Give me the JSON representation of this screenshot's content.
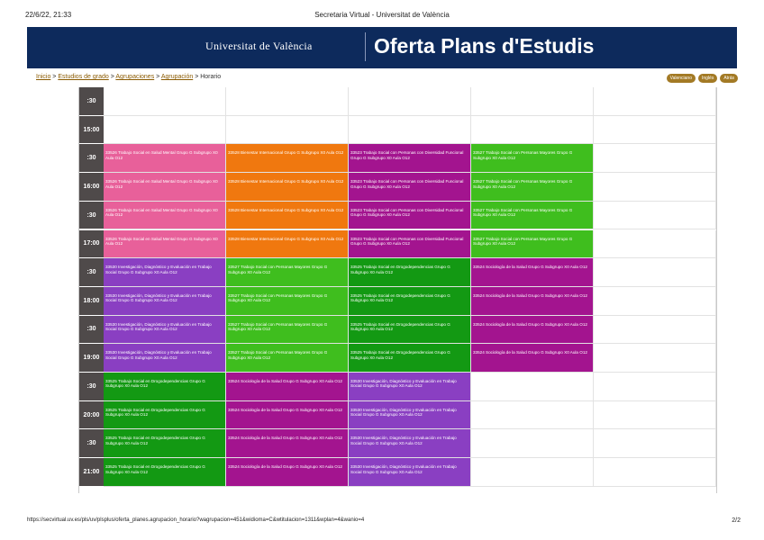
{
  "print_header": {
    "date": "22/6/22, 21:33",
    "title": "Secretaria Virtual - Universitat de València"
  },
  "banner": {
    "university": "Universitat de València",
    "title": "Oferta Plans d'Estudis"
  },
  "breadcrumb": {
    "items": [
      "Inicio",
      "Estudios de grado",
      "Agrupaciones",
      "Agrupación"
    ],
    "separator": ">",
    "current": "Horario"
  },
  "languages": [
    "Valenciano",
    "Inglés",
    "Atrás"
  ],
  "colors": {
    "pink": "#e8609a",
    "orange": "#f0780f",
    "magenta": "#a3148f",
    "green": "#3fbe1e",
    "darkgreen": "#139913",
    "purple": "#8a3fc2",
    "time_bg": "#4f4a4a"
  },
  "schedule": {
    "rows": [
      {
        "time": ":30",
        "cells": [
          null,
          null,
          null,
          null,
          null
        ]
      },
      {
        "time": "15:00",
        "cells": [
          null,
          null,
          null,
          null,
          null
        ]
      },
      {
        "time": ":30",
        "cells": [
          {
            "text": "33526 Trabajo Social en Salud Mental Grupo G Subgrupo X0 Aula O12",
            "color": "pink"
          },
          {
            "text": "33528 Bienestar Internacional Grupo G Subgrupo X0 Aula O12",
            "color": "orange"
          },
          {
            "text": "33523 Trabajo Social con Personas con Diversidad Funcional Grupo G Subgrupo X0 Aula O12",
            "color": "magenta"
          },
          {
            "text": "33527 Trabajo Social con Personas Mayores Grupo G Subgrupo X0 Aula O12",
            "color": "green"
          },
          null
        ]
      },
      {
        "time": "16:00",
        "cells": [
          {
            "text": "33526 Trabajo Social en Salud Mental Grupo G Subgrupo X0 Aula O12",
            "color": "pink"
          },
          {
            "text": "33528 Bienestar Internacional Grupo G Subgrupo X0 Aula O12",
            "color": "orange"
          },
          {
            "text": "33523 Trabajo Social con Personas con Diversidad Funcional Grupo G Subgrupo X0 Aula O12",
            "color": "magenta"
          },
          {
            "text": "33527 Trabajo Social con Personas Mayores Grupo G Subgrupo X0 Aula O12",
            "color": "green"
          },
          null
        ]
      },
      {
        "time": ":30",
        "cells": [
          {
            "text": "33526 Trabajo Social en Salud Mental Grupo G Subgrupo X0 Aula O12",
            "color": "pink"
          },
          {
            "text": "33528 Bienestar Internacional Grupo G Subgrupo X0 Aula O12",
            "color": "orange"
          },
          {
            "text": "33523 Trabajo Social con Personas con Diversidad Funcional Grupo G Subgrupo X0 Aula O12",
            "color": "magenta"
          },
          {
            "text": "33527 Trabajo Social con Personas Mayores Grupo G Subgrupo X0 Aula O12",
            "color": "green"
          },
          null
        ]
      },
      {
        "time": "17:00",
        "cells": [
          {
            "text": "33526 Trabajo Social en Salud Mental Grupo G Subgrupo X0 Aula O12",
            "color": "pink"
          },
          {
            "text": "33528 Bienestar Internacional Grupo G Subgrupo X0 Aula O12",
            "color": "orange"
          },
          {
            "text": "33523 Trabajo Social con Personas con Diversidad Funcional Grupo G Subgrupo X0 Aula O12",
            "color": "magenta"
          },
          {
            "text": "33527 Trabajo Social con Personas Mayores Grupo G Subgrupo X0 Aula O12",
            "color": "green"
          },
          null
        ]
      },
      {
        "time": ":30",
        "cells": [
          {
            "text": "33530 Investigación, Diagnóstico y Evaluación en Trabajo Social Grupo G Subgrupo X0 Aula O12",
            "color": "purple"
          },
          {
            "text": "33527 Trabajo Social con Personas Mayores Grupo G Subgrupo X0 Aula O12",
            "color": "green"
          },
          {
            "text": "33525 Trabajo Social en Drogodependencias Grupo G Subgrupo X0 Aula O12",
            "color": "darkgreen"
          },
          {
            "text": "33524 Sociología de la Salud Grupo G Subgrupo X0 Aula O12",
            "color": "magenta"
          },
          null
        ]
      },
      {
        "time": "18:00",
        "cells": [
          {
            "text": "33530 Investigación, Diagnóstico y Evaluación en Trabajo Social Grupo G Subgrupo X0 Aula O12",
            "color": "purple"
          },
          {
            "text": "33527 Trabajo Social con Personas Mayores Grupo G Subgrupo X0 Aula O12",
            "color": "green"
          },
          {
            "text": "33525 Trabajo Social en Drogodependencias Grupo G Subgrupo X0 Aula O12",
            "color": "darkgreen"
          },
          {
            "text": "33524 Sociología de la Salud Grupo G Subgrupo X0 Aula O12",
            "color": "magenta"
          },
          null
        ]
      },
      {
        "time": ":30",
        "cells": [
          {
            "text": "33530 Investigación, Diagnóstico y Evaluación en Trabajo Social Grupo G Subgrupo X0 Aula O12",
            "color": "purple"
          },
          {
            "text": "33527 Trabajo Social con Personas Mayores Grupo G Subgrupo X0 Aula O12",
            "color": "green"
          },
          {
            "text": "33525 Trabajo Social en Drogodependencias Grupo G Subgrupo X0 Aula O12",
            "color": "darkgreen"
          },
          {
            "text": "33524 Sociología de la Salud Grupo G Subgrupo X0 Aula O12",
            "color": "magenta"
          },
          null
        ]
      },
      {
        "time": "19:00",
        "cells": [
          {
            "text": "33530 Investigación, Diagnóstico y Evaluación en Trabajo Social Grupo G Subgrupo X0 Aula O12",
            "color": "purple"
          },
          {
            "text": "33527 Trabajo Social con Personas Mayores Grupo G Subgrupo X0 Aula O12",
            "color": "green"
          },
          {
            "text": "33525 Trabajo Social en Drogodependencias Grupo G Subgrupo X0 Aula O12",
            "color": "darkgreen"
          },
          {
            "text": "33524 Sociología de la Salud Grupo G Subgrupo X0 Aula O12",
            "color": "magenta"
          },
          null
        ]
      },
      {
        "time": ":30",
        "cells": [
          {
            "text": "33525 Trabajo Social en Drogodependencias Grupo G Subgrupo X0 Aula O12",
            "color": "darkgreen"
          },
          {
            "text": "33524 Sociología de la Salud Grupo G Subgrupo X0 Aula O12",
            "color": "magenta"
          },
          {
            "text": "33530 Investigación, Diagnóstico y Evaluación en Trabajo Social Grupo G Subgrupo X0 Aula O12",
            "color": "purple"
          },
          null,
          null
        ]
      },
      {
        "time": "20:00",
        "cells": [
          {
            "text": "33525 Trabajo Social en Drogodependencias Grupo G Subgrupo X0 Aula O12",
            "color": "darkgreen"
          },
          {
            "text": "33524 Sociología de la Salud Grupo G Subgrupo X0 Aula O12",
            "color": "magenta"
          },
          {
            "text": "33530 Investigación, Diagnóstico y Evaluación en Trabajo Social Grupo G Subgrupo X0 Aula O12",
            "color": "purple"
          },
          null,
          null
        ]
      },
      {
        "time": ":30",
        "cells": [
          {
            "text": "33525 Trabajo Social en Drogodependencias Grupo G Subgrupo X0 Aula O12",
            "color": "darkgreen"
          },
          {
            "text": "33524 Sociología de la Salud Grupo G Subgrupo X0 Aula O12",
            "color": "magenta"
          },
          {
            "text": "33530 Investigación, Diagnóstico y Evaluación en Trabajo Social Grupo G Subgrupo X0 Aula O12",
            "color": "purple"
          },
          null,
          null
        ]
      },
      {
        "time": "21:00",
        "cells": [
          {
            "text": "33525 Trabajo Social en Drogodependencias Grupo G Subgrupo X0 Aula O12",
            "color": "darkgreen"
          },
          {
            "text": "33524 Sociología de la Salud Grupo G Subgrupo X0 Aula O12",
            "color": "magenta"
          },
          {
            "text": "33530 Investigación, Diagnóstico y Evaluación en Trabajo Social Grupo G Subgrupo X0 Aula O12",
            "color": "purple"
          },
          null,
          null
        ]
      }
    ]
  },
  "footer": {
    "url": "https://secvirtual.uv.es/pls/uv/plsplus/oferta_planes.agrupacion_horario?wagrupacion=451&widioma=C&wtitulacion=1311&wplan=4&wanio=4",
    "page": "2/2"
  }
}
